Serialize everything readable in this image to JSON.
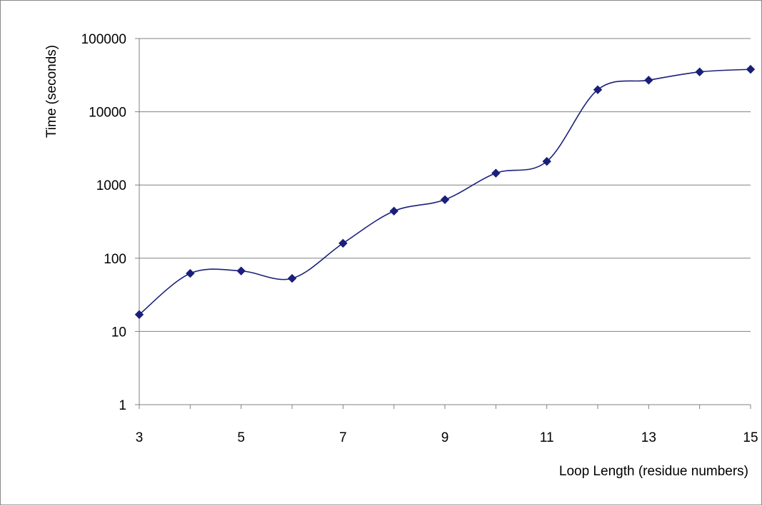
{
  "chart_data": {
    "type": "line",
    "title": "",
    "xlabel": "Loop Length (residue numbers)",
    "ylabel": "Time (seconds)",
    "yscale": "log",
    "ylim": [
      1,
      100000
    ],
    "xlim": [
      3,
      15
    ],
    "x_ticks": [
      "3",
      "5",
      "7",
      "9",
      "11",
      "13",
      "15"
    ],
    "y_ticks": [
      "1",
      "10",
      "100",
      "1000",
      "10000",
      "100000"
    ],
    "grid": "horizontal",
    "legend": "none",
    "smoothed": true,
    "series": [
      {
        "color": "#1a1f7a",
        "marker": "diamond",
        "x": [
          3,
          4,
          5,
          6,
          7,
          8,
          9,
          10,
          11,
          12,
          13,
          14,
          15
        ],
        "y": [
          17,
          62,
          67,
          53,
          160,
          440,
          630,
          1450,
          2100,
          20000,
          27000,
          35000,
          38000
        ]
      }
    ]
  }
}
